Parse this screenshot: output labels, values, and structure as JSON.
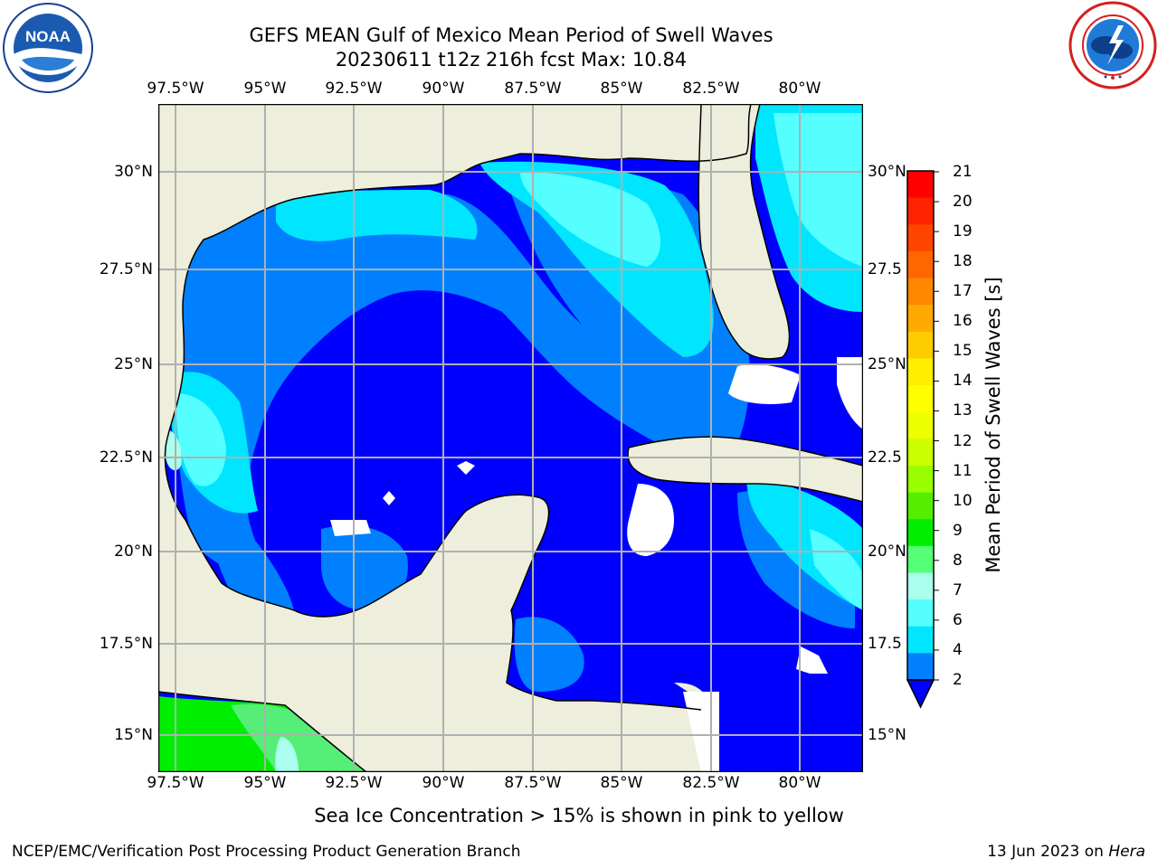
{
  "header": {
    "title": "GEFS MEAN Gulf of Mexico Mean Period of Swell Waves",
    "subtitle": "20230611 t12z 216h fcst   Max: 10.84"
  },
  "map": {
    "lon_ticks_top": [
      "97.5°W",
      "95°W",
      "92.5°W",
      "90°W",
      "87.5°W",
      "85°W",
      "82.5°W",
      "80°W"
    ],
    "lon_ticks_bottom": [
      "97.5°W",
      "95°W",
      "92.5°W",
      "90°W",
      "87.5°W",
      "85°W",
      "82.5°W",
      "80°W"
    ],
    "lat_ticks_left": [
      "30°N",
      "27.5°N",
      "25°N",
      "22.5°N",
      "20°N",
      "17.5°N",
      "15°N"
    ],
    "lat_ticks_right": [
      "30°N",
      "27.5",
      "25°N",
      "22.5",
      "20°N",
      "17.5",
      "15°N"
    ],
    "land_color": "#eeeedc",
    "gridline_color": "#b0b0b0"
  },
  "colorbar": {
    "label": "Mean Period of Swell Waves [s]",
    "ticks": [
      "21",
      "20",
      "19",
      "18",
      "17",
      "16",
      "15",
      "14",
      "13",
      "12",
      "11",
      "10",
      "9",
      "8",
      "7",
      "6",
      "4",
      "2"
    ],
    "colors": [
      "#ff0000",
      "#ff2200",
      "#ff4400",
      "#ff6600",
      "#ff8800",
      "#ffaa00",
      "#ffcc00",
      "#ffee00",
      "#ffff00",
      "#eeff00",
      "#ccff00",
      "#99ff00",
      "#55ee00",
      "#00ee00",
      "#55ff77",
      "#aaffee",
      "#55ffff",
      "#00e6ff",
      "#0080ff"
    ],
    "extend_color": "#0000ff"
  },
  "logos": {
    "noaa": "NOAA",
    "nws": "NATIONAL WEATHER SERVICE"
  },
  "notes": {
    "ice": "Sea Ice Concentration > 15% is shown in pink to yellow"
  },
  "footer": {
    "left": "NCEP/EMC/Verification Post Processing Product Generation Branch",
    "date": "13 Jun 2023 on ",
    "host": "Hera"
  }
}
